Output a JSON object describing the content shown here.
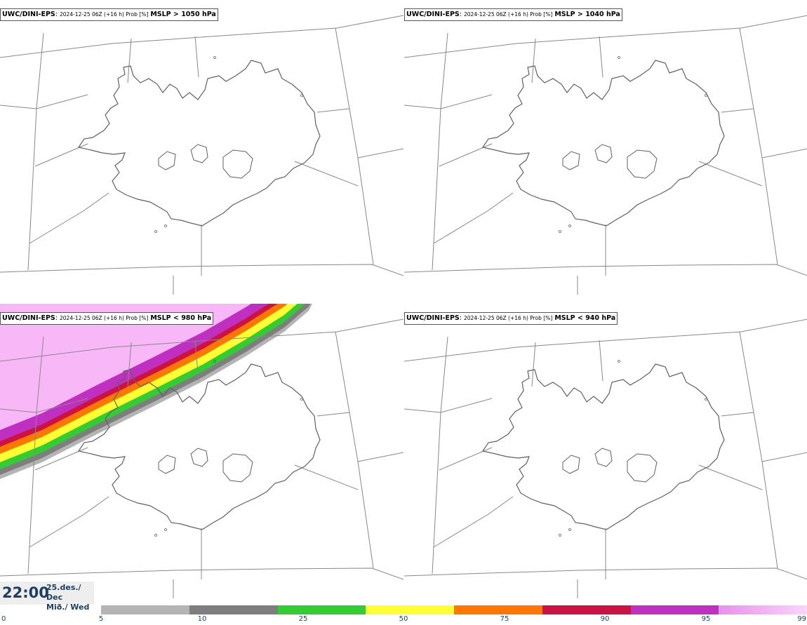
{
  "panels": [
    {
      "source": "UWC/DINI-EPS",
      "run": "2024-12-25 06Z (+16 h) Prob [%]",
      "threshold": "MSLP > 1050 hPa",
      "shaded": false
    },
    {
      "source": "UWC/DINI-EPS",
      "run": "2024-12-25 06Z (+16 h) Prob [%]",
      "threshold": "MSLP > 1040 hPa",
      "shaded": false
    },
    {
      "source": "UWC/DINI-EPS",
      "run": "2024-12-25 06Z (+16 h) Prob [%]",
      "threshold": "MSLP < 980 hPa",
      "shaded": true
    },
    {
      "source": "UWC/DINI-EPS",
      "run": "2024-12-25 06Z (+16 h) Prob [%]",
      "threshold": "MSLP < 940 hPa",
      "shaded": false
    }
  ],
  "valid_time": {
    "time": "22:00",
    "date_line1": "25.des./ Dec",
    "date_line2": "Mið./ Wed"
  },
  "colorbar": {
    "ticks": [
      "0",
      "5",
      "10",
      "25",
      "50",
      "75",
      "90",
      "95",
      "99"
    ],
    "colors": [
      "#b4b4b4",
      "#7e7e7e",
      "#33cc33",
      "#ffff33",
      "#ff7700",
      "#cc1144",
      "#c030c0",
      "#f8b8f8"
    ],
    "probability_levels": [
      5,
      10,
      25,
      50,
      75,
      90,
      95,
      99
    ]
  },
  "map": {
    "region": "Iceland",
    "coast_color": "#606060",
    "grid_color": "#888888"
  }
}
